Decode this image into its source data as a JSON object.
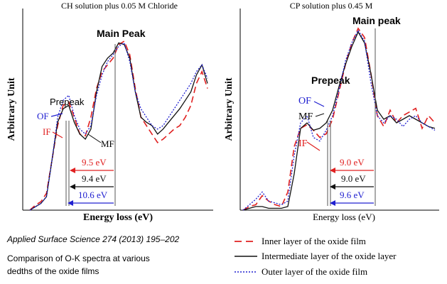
{
  "citation": "Applied Surface Science 274 (2013) 195–202",
  "caption_line1": "Comparison of O-K spectra at various",
  "caption_line2": "dedths of the  oxide films",
  "legend": {
    "inner": "Inner layer of the oxide film",
    "intermediate": "Intermediate layer of the oxide layer",
    "outer": "Outer layer of the oxide film"
  },
  "colors": {
    "inner": "#e02020",
    "intermediate": "#111111",
    "outer": "#2020d0",
    "gap_arrow_1": "#e02020",
    "gap_arrow_2": "#111111",
    "gap_arrow_3": "#2020d0"
  },
  "chart_data": [
    {
      "type": "line",
      "title": "CH solution plus 0.05 M Chloride",
      "xlabel": "Energy loss (eV)",
      "ylabel": "Arbitrary Unit",
      "grid": false,
      "axis_ticks": false,
      "annotations": {
        "main_peak": "Main Peak",
        "prepeak": "Prepeak",
        "of": "OF",
        "if": "IF",
        "mf": "MF"
      },
      "gaps": [
        {
          "label": "9.5 eV",
          "color": "inner"
        },
        {
          "label": "9.4 eV",
          "color": "intermediate"
        },
        {
          "label": "10.6 eV",
          "color": "outer"
        }
      ],
      "series": [
        {
          "key": "inner",
          "style": "dashed",
          "y": [
            0.0,
            0.03,
            0.05,
            0.1,
            0.3,
            0.5,
            0.62,
            0.64,
            0.55,
            0.45,
            0.44,
            0.55,
            0.72,
            0.82,
            0.86,
            0.9,
            0.98,
            1.0,
            0.92,
            0.72,
            0.55,
            0.5,
            0.45,
            0.4,
            0.42,
            0.45,
            0.48,
            0.5,
            0.55,
            0.62,
            0.75,
            0.82,
            0.72
          ]
        },
        {
          "key": "intermediate",
          "style": "solid",
          "y": [
            0.0,
            0.02,
            0.04,
            0.08,
            0.3,
            0.52,
            0.6,
            0.62,
            0.52,
            0.45,
            0.42,
            0.48,
            0.7,
            0.85,
            0.9,
            0.93,
            0.99,
            0.98,
            0.9,
            0.7,
            0.55,
            0.52,
            0.5,
            0.45,
            0.48,
            0.52,
            0.56,
            0.6,
            0.65,
            0.7,
            0.8,
            0.86,
            0.75
          ]
        },
        {
          "key": "outer",
          "style": "dotted",
          "y": [
            0.0,
            0.02,
            0.04,
            0.08,
            0.3,
            0.55,
            0.65,
            0.68,
            0.56,
            0.48,
            0.45,
            0.5,
            0.68,
            0.8,
            0.88,
            0.92,
            0.97,
            0.99,
            0.88,
            0.7,
            0.6,
            0.55,
            0.5,
            0.48,
            0.5,
            0.55,
            0.6,
            0.65,
            0.7,
            0.75,
            0.82,
            0.86,
            0.78
          ]
        }
      ]
    },
    {
      "type": "line",
      "title": "CP solution plus 0.45 M",
      "xlabel": "Energy loss (eV)",
      "ylabel": "Arbitrary Unit",
      "grid": false,
      "axis_ticks": false,
      "annotations": {
        "main_peak": "Main peak",
        "prepeak": "Prepeak",
        "of": "OF",
        "if": "IF",
        "mf": "MF"
      },
      "gaps": [
        {
          "label": "9.0 eV",
          "color": "inner"
        },
        {
          "label": "9.0 eV",
          "color": "intermediate"
        },
        {
          "label": "9.6 eV",
          "color": "outer"
        }
      ],
      "series": [
        {
          "key": "inner",
          "style": "dashed",
          "y": [
            0.0,
            0.02,
            0.03,
            0.08,
            0.05,
            0.03,
            0.02,
            0.1,
            0.35,
            0.45,
            0.47,
            0.44,
            0.4,
            0.42,
            0.5,
            0.65,
            0.8,
            0.92,
            1.0,
            0.95,
            0.75,
            0.52,
            0.46,
            0.55,
            0.48,
            0.52,
            0.54,
            0.56,
            0.45,
            0.52,
            0.48
          ]
        },
        {
          "key": "intermediate",
          "style": "solid",
          "y": [
            0.0,
            0.01,
            0.02,
            0.02,
            0.01,
            0.01,
            0.01,
            0.02,
            0.2,
            0.45,
            0.48,
            0.44,
            0.45,
            0.48,
            0.55,
            0.68,
            0.8,
            0.9,
            0.98,
            0.92,
            0.75,
            0.55,
            0.5,
            0.52,
            0.48,
            0.5,
            0.52,
            0.5,
            0.48,
            0.46,
            0.45
          ]
        },
        {
          "key": "outer",
          "style": "dotted",
          "y": [
            0.0,
            0.03,
            0.06,
            0.1,
            0.05,
            0.04,
            0.03,
            0.05,
            0.3,
            0.48,
            0.52,
            0.4,
            0.38,
            0.44,
            0.52,
            0.66,
            0.82,
            0.92,
            0.99,
            0.93,
            0.7,
            0.52,
            0.48,
            0.52,
            0.5,
            0.46,
            0.5,
            0.52,
            0.48,
            0.46,
            0.44
          ]
        }
      ]
    }
  ]
}
